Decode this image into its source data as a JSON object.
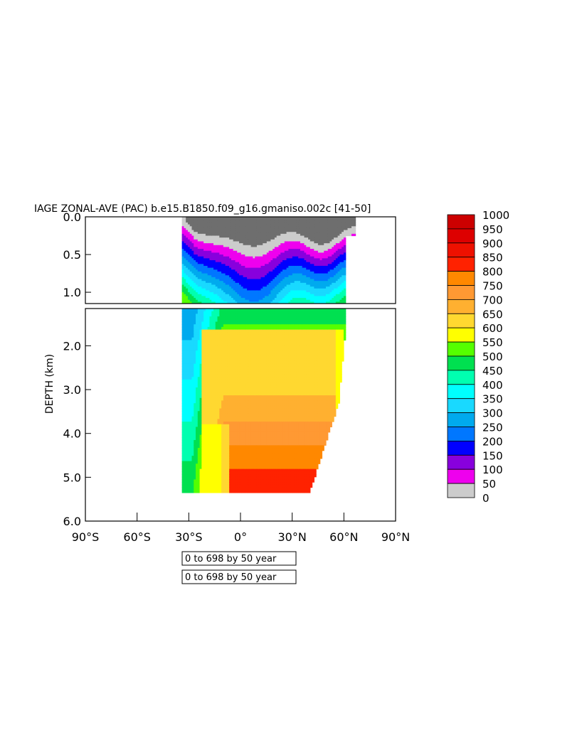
{
  "chart_data": {
    "type": "heatmap",
    "title": "IAGE ZONAL-AVE (PAC) b.e15.B1850.f09_g16.gmaniso.002c [41-50]",
    "xlabel": "",
    "ylabel": "DEPTH (km)",
    "x_ticks": [
      "90°S",
      "60°S",
      "30°S",
      "0°",
      "30°N",
      "60°N",
      "90°N"
    ],
    "x_tick_values": [
      -90,
      -60,
      -30,
      0,
      30,
      60,
      90
    ],
    "xlim": [
      -90,
      90
    ],
    "upper_panel": {
      "ylim": [
        0.0,
        1.15
      ],
      "y_ticks": [
        "0.0",
        "0.5",
        "1.0"
      ],
      "y_tick_values": [
        0.0,
        0.5,
        1.0
      ]
    },
    "lower_panel": {
      "ylim": [
        1.15,
        6.0
      ],
      "y_ticks": [
        "2.0",
        "3.0",
        "4.0",
        "5.0",
        "6.0"
      ],
      "y_tick_values": [
        2.0,
        3.0,
        4.0,
        5.0,
        6.0
      ]
    },
    "data_extent": {
      "lat_min": -34,
      "lat_max": 63,
      "max_depth_km": 5.35
    },
    "contour_interval": 50,
    "colorbar": {
      "labels": [
        "1000",
        "950",
        "900",
        "850",
        "800",
        "750",
        "700",
        "650",
        "600",
        "550",
        "500",
        "450",
        "400",
        "350",
        "300",
        "250",
        "200",
        "150",
        "100",
        "50",
        "0"
      ],
      "colors": [
        "#cc0000",
        "#dd0000",
        "#ee1100",
        "#ff2200",
        "#ff8800",
        "#ff9933",
        "#ffb030",
        "#ffd830",
        "#ffff00",
        "#55ff00",
        "#00e050",
        "#00ffb0",
        "#00ffff",
        "#19d9ff",
        "#00aaee",
        "#0077ff",
        "#0000ff",
        "#8800dd",
        "#ee00ee",
        "#cccccc",
        "#6e6e6e"
      ]
    },
    "age_profile": {
      "comment_free": true,
      "upper_depths_km": [
        0.0,
        0.15,
        0.3,
        0.45,
        0.6,
        0.75,
        0.9,
        1.05
      ],
      "levels_by_region": {
        "south_30S": [
          25,
          75,
          125,
          175,
          225,
          275,
          325,
          375
        ],
        "equator": [
          25,
          125,
          225,
          275,
          325,
          375,
          425,
          475
        ],
        "north_45N": [
          25,
          75,
          175,
          225,
          275,
          325,
          375,
          450
        ]
      },
      "deep_core_age": 675
    }
  },
  "notes": [
    "0 to 698 by 50 year",
    "0 to 698 by 50 year"
  ]
}
